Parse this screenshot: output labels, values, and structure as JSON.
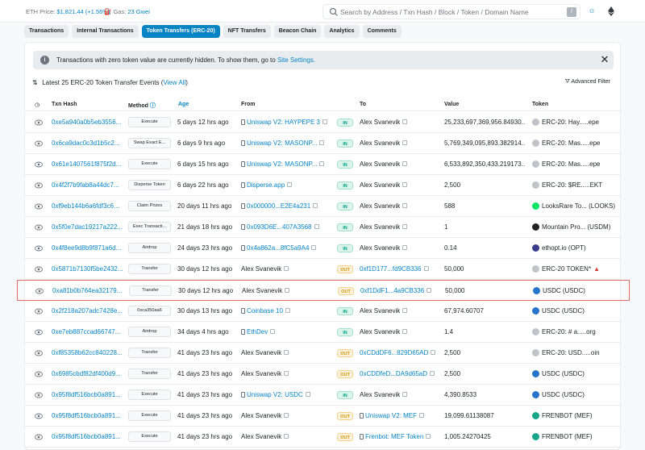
{
  "topbar": {
    "eth_price_label": "ETH Price:",
    "eth_price_value": "$1,821.44 (+1.56%)",
    "gas_label": "Gas:",
    "gas_value": "23 Gwei",
    "search_placeholder": "Search by Address / Txn Hash / Block / Token / Domain Name",
    "search_shortcut": "/"
  },
  "tabs": [
    {
      "label": "Transactions",
      "active": false
    },
    {
      "label": "Internal Transactions",
      "active": false
    },
    {
      "label": "Token Transfers (ERC-20)",
      "active": true
    },
    {
      "label": "NFT Transfers",
      "active": false
    },
    {
      "label": "Beacon Chain",
      "active": false
    },
    {
      "label": "Analytics",
      "active": false
    },
    {
      "label": "Comments",
      "active": false
    }
  ],
  "alert": {
    "message": "Transactions with zero token value are currently hidden. To show them, go to",
    "link": "Site Settings.",
    "close": "✕"
  },
  "summary": {
    "text": "Latest 25 ERC-20 Token Transfer Events (",
    "link": "View All",
    "close": ")",
    "advanced_filter": "Advanced Filter"
  },
  "columns": {
    "txn_hash": "Txn Hash",
    "method": "Method",
    "age": "Age",
    "from": "From",
    "to": "To",
    "value": "Value",
    "token": "Token"
  },
  "rows": [
    {
      "hash": "0xe5a940a0b5eb3556...",
      "method": "Execute",
      "age": "5 days 12 hrs ago",
      "from": "Uniswap V2: HAYPEPE 3",
      "from_type": "contract",
      "dir": "IN",
      "to": "Alex Svanevik",
      "to_type": "plain",
      "value": "25,233,697,369,956.84930...",
      "token": "ERC-20: Hay.....epe",
      "token_color": "#c0c4c8",
      "highlight": false,
      "warn": false
    },
    {
      "hash": "0x6ca9dac0c3d1b5c2...",
      "method": "Swap Exact E...",
      "age": "6 days 9 hrs ago",
      "from": "Uniswap V2: MASONP...",
      "from_type": "contract",
      "dir": "IN",
      "to": "Alex Svanevik",
      "to_type": "plain",
      "value": "5,769,349,095,893.382914...",
      "token": "ERC-20: Mas.....epe",
      "token_color": "#c0c4c8",
      "highlight": false,
      "warn": false
    },
    {
      "hash": "0x61e1407561f875f2d...",
      "method": "Execute",
      "age": "6 days 15 hrs ago",
      "from": "Uniswap V2: MASONP...",
      "from_type": "contract",
      "dir": "IN",
      "to": "Alex Svanevik",
      "to_type": "plain",
      "value": "6,533,892,350,433.219173...",
      "token": "ERC-20: Mas.....epe",
      "token_color": "#c0c4c8",
      "highlight": false,
      "warn": false
    },
    {
      "hash": "0x4f2f7b9fab8a44dc7...",
      "method": "Disperse Token",
      "age": "6 days 22 hrs ago",
      "from": "Disperse.app",
      "from_type": "contract",
      "dir": "IN",
      "to": "Alex Svanevik",
      "to_type": "plain",
      "value": "2,500",
      "token": "ERC-20: $RE.....EKT",
      "token_color": "#c0c4c8",
      "highlight": false,
      "warn": false
    },
    {
      "hash": "0xf9eb144b6a6fdf3c6...",
      "method": "Claim Prizes",
      "age": "20 days 11 hrs ago",
      "from": "0x000000...E2E4a231",
      "from_type": "contract",
      "dir": "IN",
      "to": "Alex Svanevik",
      "to_type": "plain",
      "value": "588",
      "token": "LooksRare To... (LOOKS)",
      "token_color": "#0ce466",
      "highlight": false,
      "warn": false
    },
    {
      "hash": "0x5f0e7dac19217a222...",
      "method": "Exec Transacti...",
      "age": "21 days 18 hrs ago",
      "from": "0x093D6E...407A3568",
      "from_type": "contract",
      "dir": "IN",
      "to": "Alex Svanevik",
      "to_type": "plain",
      "value": "1",
      "token": "Mountain Pro... (USDM)",
      "token_color": "#222222",
      "highlight": false,
      "warn": false
    },
    {
      "hash": "0x4f8ee9d8b9f871a6d...",
      "method": "Airdrop",
      "age": "24 days 23 hrs ago",
      "from": "0x4a862a...8fC5a9A4",
      "from_type": "contract",
      "dir": "IN",
      "to": "Alex Svanevik",
      "to_type": "plain",
      "value": "0.14",
      "token": "ethopt.io (OPT)",
      "token_color": "#3a3a8a",
      "highlight": false,
      "warn": false
    },
    {
      "hash": "0x5871b7130f5be2432...",
      "method": "Transfer",
      "age": "30 days 12 hrs ago",
      "from": "Alex Svanevik",
      "from_type": "plain",
      "dir": "OUT",
      "to": "0xf1D177...fd9CB336",
      "to_type": "link",
      "value": "50,000",
      "token": "ERC-20 TOKEN*",
      "token_color": "#c0c4c8",
      "highlight": false,
      "warn": true
    },
    {
      "hash": "0xa81b0b764ea32179...",
      "method": "Transfer",
      "age": "30 days 12 hrs ago",
      "from": "Alex Svanevik",
      "from_type": "plain",
      "dir": "OUT",
      "to": "0xf1DdF1...4a9CB336",
      "to_type": "link",
      "value": "50,000",
      "token": "USDC (USDC)",
      "token_color": "#2775ca",
      "highlight": true,
      "warn": false
    },
    {
      "hash": "0x2f218a207adc7428e...",
      "method": "0xca350aa6",
      "age": "30 days 13 hrs ago",
      "from": "Coinbase 10",
      "from_type": "contract",
      "dir": "IN",
      "to": "Alex Svanevik",
      "to_type": "plain",
      "value": "67,974.60707",
      "token": "USDC (USDC)",
      "token_color": "#2775ca",
      "highlight": false,
      "warn": false
    },
    {
      "hash": "0xe7eb887ccad66747...",
      "method": "Airdrop",
      "age": "34 days 4 hrs ago",
      "from": "EthDev",
      "from_type": "contract",
      "dir": "IN",
      "to": "Alex Svanevik",
      "to_type": "plain",
      "value": "1.4",
      "token": "ERC-20: # a.....org",
      "token_color": "#c0c4c8",
      "highlight": false,
      "warn": false
    },
    {
      "hash": "0xf85358b62cc840228...",
      "method": "Transfer",
      "age": "41 days 23 hrs ago",
      "from": "Alex Svanevik",
      "from_type": "plain",
      "dir": "OUT",
      "to": "0xCDdDF6...829D65AD",
      "to_type": "link",
      "value": "2,500",
      "token": "ERC-20: USD.....oin",
      "token_color": "#c0c4c8",
      "highlight": false,
      "warn": false
    },
    {
      "hash": "0x6985cbdf82df400d9...",
      "method": "Transfer",
      "age": "41 days 23 hrs ago",
      "from": "Alex Svanevik",
      "from_type": "plain",
      "dir": "OUT",
      "to": "0xCDDfeD...DA9d65aD",
      "to_type": "link",
      "value": "2,500",
      "token": "USDC (USDC)",
      "token_color": "#2775ca",
      "highlight": false,
      "warn": false
    },
    {
      "hash": "0x95f8df516bcb0a891...",
      "method": "Execute",
      "age": "41 days 23 hrs ago",
      "from": "Uniswap V2: USDC",
      "from_type": "contract",
      "dir": "IN",
      "to": "Alex Svanevik",
      "to_type": "plain",
      "value": "4,390.8533",
      "token": "USDC (USDC)",
      "token_color": "#2775ca",
      "highlight": false,
      "warn": false
    },
    {
      "hash": "0x95f8df516bcb0a891...",
      "method": "Execute",
      "age": "41 days 23 hrs ago",
      "from": "Alex Svanevik",
      "from_type": "plain",
      "dir": "OUT",
      "to": "Uniswap V2: MEF",
      "to_type": "contract",
      "value": "19,099.61138087",
      "token": "FRENBOT (MEF)",
      "token_color": "#17a589",
      "highlight": false,
      "warn": false
    },
    {
      "hash": "0x95f8df516bcb0a891...",
      "method": "Execute",
      "age": "41 days 23 hrs ago",
      "from": "Alex Svanevik",
      "from_type": "plain",
      "dir": "OUT",
      "to": "Frenbot: MEF Token",
      "to_type": "contract",
      "value": "1,005.24270425",
      "token": "FRENBOT (MEF)",
      "token_color": "#17a589",
      "highlight": false,
      "warn": false
    }
  ]
}
